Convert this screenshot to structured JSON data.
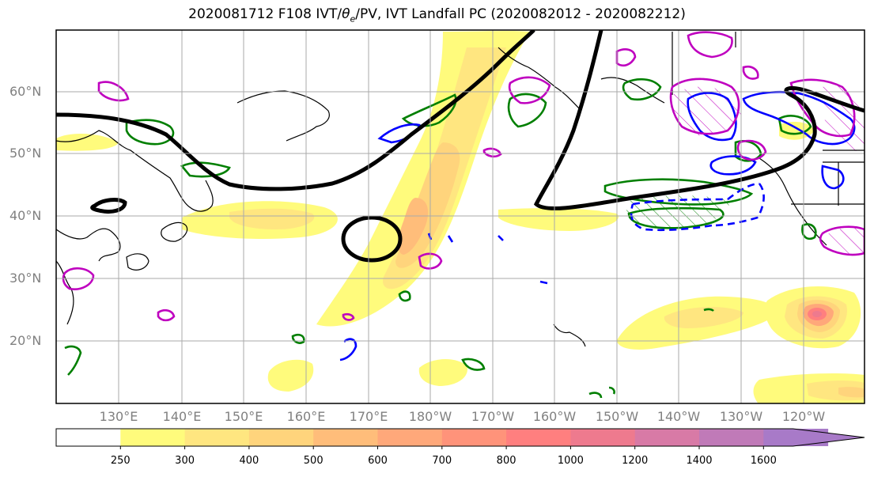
{
  "title_prefix": "2020081712 F108 IVT/",
  "title_theta": "θ",
  "title_sub": "e",
  "title_suffix": "/PV, IVT Landfall PC (2020082012 - 2020082212)",
  "lat_labels": [
    "60°N",
    "50°N",
    "40°N",
    "30°N",
    "20°N"
  ],
  "lon_labels": [
    "130°E",
    "140°E",
    "150°E",
    "160°E",
    "170°E",
    "180°W",
    "170°W",
    "160°W",
    "150°W",
    "140°W",
    "130°W",
    "120°W"
  ],
  "colorbar": {
    "ticks": [
      "250",
      "300",
      "400",
      "500",
      "600",
      "700",
      "800",
      "1000",
      "1200",
      "1400",
      "1600"
    ],
    "colors": [
      "#ffffff",
      "#fffb7c",
      "#ffe680",
      "#ffd47c",
      "#ffbd7a",
      "#ffa87a",
      "#ff937a",
      "#ff7f7f",
      "#ee7a8e",
      "#d87aa6",
      "#c07ab8",
      "#a87ac8"
    ]
  },
  "legend_colors": {
    "pv_theta_e": "#0000ff",
    "ivt_pc": "#007f00",
    "secondary": "#bf00bf",
    "jet": "#000000"
  }
}
